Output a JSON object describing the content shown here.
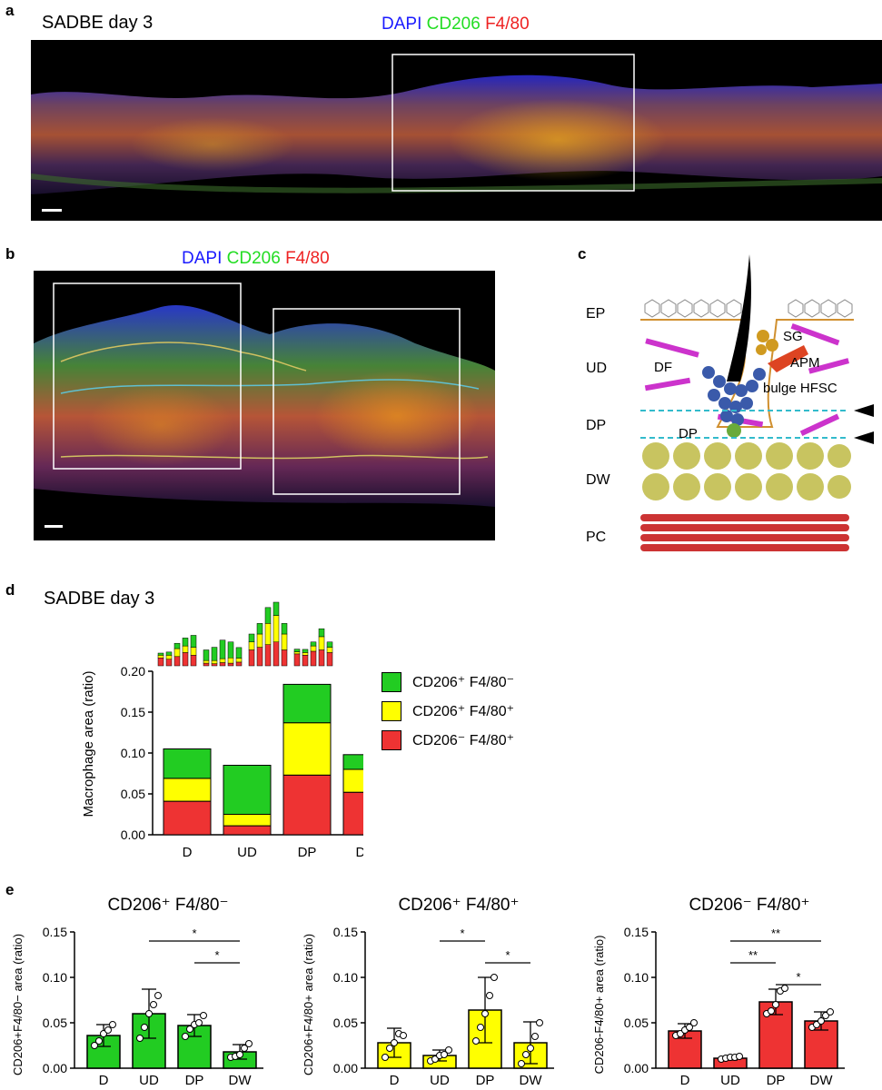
{
  "panels": {
    "a": {
      "letter": "a",
      "title": "SADBE day 3",
      "stain": {
        "dapi": "DAPI",
        "cd206": "CD206",
        "f480": "F4/80"
      }
    },
    "b": {
      "letter": "b",
      "stain": {
        "dapi": "DAPI",
        "cd206": "CD206",
        "f480": "F4/80"
      }
    },
    "c": {
      "letter": "c",
      "layers": [
        "EP",
        "UD",
        "DP",
        "DW",
        "PC"
      ],
      "structures": {
        "df": "DF",
        "sg": "SG",
        "apm": "APM",
        "bulge": "bulge HFSC",
        "dp": "DP"
      }
    },
    "d": {
      "letter": "d",
      "title": "SADBE day 3",
      "legend": [
        {
          "label": "CD206⁺ F4/80⁻",
          "color": "#22cc22"
        },
        {
          "label": "CD206⁺ F4/80⁺",
          "color": "#ffff00"
        },
        {
          "label": "CD206⁻ F4/80⁺",
          "color": "#ee3333"
        }
      ]
    },
    "e": {
      "letter": "e"
    }
  },
  "colors": {
    "green": "#22cc22",
    "yellow": "#ffff00",
    "red": "#ee3333",
    "dapi": "#1a1aff"
  },
  "chart_data": [
    {
      "id": "d-stacked",
      "type": "bar",
      "stacked": true,
      "categories": [
        "D",
        "UD",
        "DP",
        "DW"
      ],
      "series": [
        {
          "name": "CD206⁻ F4/80⁺",
          "color": "#ee3333",
          "values": [
            0.041,
            0.011,
            0.073,
            0.052
          ]
        },
        {
          "name": "CD206⁺ F4/80⁺",
          "color": "#ffff00",
          "values": [
            0.028,
            0.014,
            0.064,
            0.028
          ]
        },
        {
          "name": "CD206⁺ F4/80⁻",
          "color": "#22cc22",
          "values": [
            0.036,
            0.06,
            0.047,
            0.018
          ]
        }
      ],
      "ylabel": "Macrophage area (ratio)",
      "ylim": [
        0,
        0.2
      ],
      "yticks": [
        "0.00",
        "0.05",
        "0.10",
        "0.15",
        "0.20"
      ]
    },
    {
      "id": "d-mini",
      "type": "bar",
      "stacked": true,
      "note": "per-sample stacked bars, 5 per region",
      "groups": [
        "D",
        "UD",
        "DP",
        "DW"
      ],
      "samples": [
        [
          [
            0.03,
            0.01,
            0.008
          ],
          [
            0.025,
            0.015,
            0.012
          ],
          [
            0.035,
            0.03,
            0.02
          ],
          [
            0.05,
            0.025,
            0.03
          ],
          [
            0.04,
            0.03,
            0.045
          ]
        ],
        [
          [
            0.01,
            0.01,
            0.04
          ],
          [
            0.008,
            0.012,
            0.05
          ],
          [
            0.012,
            0.015,
            0.07
          ],
          [
            0.01,
            0.02,
            0.06
          ],
          [
            0.014,
            0.015,
            0.04
          ]
        ],
        [
          [
            0.06,
            0.03,
            0.03
          ],
          [
            0.07,
            0.05,
            0.04
          ],
          [
            0.08,
            0.08,
            0.06
          ],
          [
            0.09,
            0.1,
            0.05
          ],
          [
            0.06,
            0.06,
            0.04
          ]
        ],
        [
          [
            0.045,
            0.008,
            0.01
          ],
          [
            0.04,
            0.01,
            0.012
          ],
          [
            0.055,
            0.02,
            0.015
          ],
          [
            0.06,
            0.05,
            0.03
          ],
          [
            0.05,
            0.02,
            0.02
          ]
        ]
      ]
    },
    {
      "id": "e1",
      "type": "bar",
      "title": "CD206⁺ F4/80⁻",
      "ylabel": "CD206+F4/80− area (ratio)",
      "color": "#22cc22",
      "categories": [
        "D",
        "UD",
        "DP",
        "DW"
      ],
      "values": [
        0.036,
        0.06,
        0.047,
        0.018
      ],
      "errors": [
        0.012,
        0.027,
        0.012,
        0.008
      ],
      "points": [
        [
          0.025,
          0.03,
          0.038,
          0.042,
          0.048
        ],
        [
          0.033,
          0.045,
          0.06,
          0.07,
          0.08
        ],
        [
          0.035,
          0.043,
          0.048,
          0.05,
          0.058
        ],
        [
          0.012,
          0.013,
          0.015,
          0.022,
          0.027
        ]
      ],
      "ylim": [
        0,
        0.15
      ],
      "yticks": [
        "0.00",
        "0.05",
        "0.10",
        "0.15"
      ],
      "significance": [
        {
          "from": 1,
          "to": 3,
          "label": "*"
        },
        {
          "from": 2,
          "to": 3,
          "label": "*"
        }
      ]
    },
    {
      "id": "e2",
      "type": "bar",
      "title": "CD206⁺ F4/80⁺",
      "ylabel": "CD206+F4/80+ area (ratio)",
      "color": "#ffff00",
      "categories": [
        "D",
        "UD",
        "DP",
        "DW"
      ],
      "values": [
        0.028,
        0.014,
        0.064,
        0.028
      ],
      "errors": [
        0.016,
        0.006,
        0.036,
        0.023
      ],
      "points": [
        [
          0.012,
          0.022,
          0.028,
          0.038,
          0.036
        ],
        [
          0.008,
          0.01,
          0.014,
          0.015,
          0.02
        ],
        [
          0.03,
          0.045,
          0.06,
          0.08,
          0.1
        ],
        [
          0.005,
          0.015,
          0.022,
          0.035,
          0.05
        ]
      ],
      "ylim": [
        0,
        0.15
      ],
      "yticks": [
        "0.00",
        "0.05",
        "0.10",
        "0.15"
      ],
      "significance": [
        {
          "from": 1,
          "to": 2,
          "label": "*"
        },
        {
          "from": 2,
          "to": 3,
          "label": "*"
        }
      ]
    },
    {
      "id": "e3",
      "type": "bar",
      "title": "CD206⁻ F4/80⁺",
      "ylabel": "CD206-F4/80+ area (ratio)",
      "color": "#ee3333",
      "categories": [
        "D",
        "UD",
        "DP",
        "DW"
      ],
      "values": [
        0.041,
        0.011,
        0.073,
        0.052
      ],
      "errors": [
        0.008,
        0.002,
        0.014,
        0.01
      ],
      "points": [
        [
          0.036,
          0.038,
          0.042,
          0.045,
          0.05
        ],
        [
          0.01,
          0.011,
          0.012,
          0.012,
          0.013
        ],
        [
          0.06,
          0.063,
          0.07,
          0.085,
          0.088
        ],
        [
          0.045,
          0.048,
          0.052,
          0.058,
          0.062
        ]
      ],
      "ylim": [
        0,
        0.15
      ],
      "yticks": [
        "0.00",
        "0.05",
        "0.10",
        "0.15"
      ],
      "significance": [
        {
          "from": 1,
          "to": 3,
          "label": "**"
        },
        {
          "from": 1,
          "to": 2,
          "label": "**"
        },
        {
          "from": 2,
          "to": 3,
          "label": "*"
        }
      ]
    }
  ]
}
